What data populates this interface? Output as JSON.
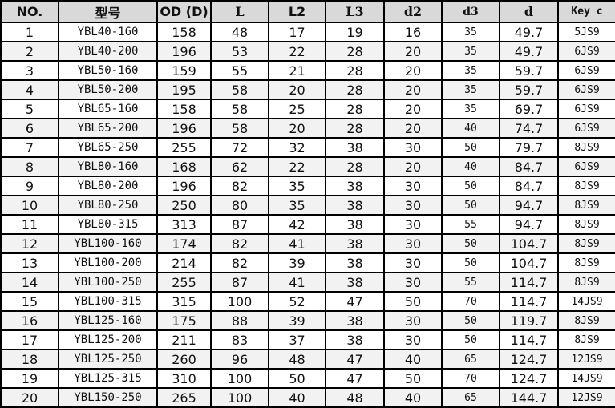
{
  "headers": [
    "NO.",
    "型号",
    "OD (D)",
    "L",
    "L2",
    "L3",
    "d2",
    "d3",
    "d",
    "Key c"
  ],
  "rows": [
    [
      "1",
      "YBL40-160",
      "158",
      "48",
      "17",
      "19",
      "16",
      "35",
      "49.7",
      "5JS9"
    ],
    [
      "2",
      "YBL40-200",
      "196",
      "53",
      "22",
      "28",
      "20",
      "35",
      "49.7",
      "6JS9"
    ],
    [
      "3",
      "YBL50-160",
      "159",
      "55",
      "21",
      "28",
      "20",
      "35",
      "59.7",
      "6JS9"
    ],
    [
      "4",
      "YBL50-200",
      "195",
      "58",
      "20",
      "28",
      "20",
      "35",
      "59.7",
      "6JS9"
    ],
    [
      "5",
      "YBL65-160",
      "158",
      "58",
      "25",
      "28",
      "20",
      "35",
      "69.7",
      "6JS9"
    ],
    [
      "6",
      "YBL65-200",
      "196",
      "58",
      "20",
      "28",
      "20",
      "40",
      "74.7",
      "6JS9"
    ],
    [
      "7",
      "YBL65-250",
      "255",
      "72",
      "32",
      "38",
      "30",
      "50",
      "79.7",
      "8JS9"
    ],
    [
      "8",
      "YBL80-160",
      "168",
      "62",
      "22",
      "28",
      "20",
      "40",
      "84.7",
      "6JS9"
    ],
    [
      "9",
      "YBL80-200",
      "196",
      "82",
      "35",
      "38",
      "30",
      "50",
      "84.7",
      "8JS9"
    ],
    [
      "10",
      "YBL80-250",
      "250",
      "80",
      "35",
      "38",
      "30",
      "50",
      "94.7",
      "8JS9"
    ],
    [
      "11",
      "YBL80-315",
      "313",
      "87",
      "42",
      "38",
      "30",
      "55",
      "94.7",
      "8JS9"
    ],
    [
      "12",
      "YBL100-160",
      "174",
      "82",
      "41",
      "38",
      "30",
      "50",
      "104.7",
      "8JS9"
    ],
    [
      "13",
      "YBL100-200",
      "214",
      "82",
      "39",
      "38",
      "30",
      "50",
      "104.7",
      "8JS9"
    ],
    [
      "14",
      "YBL100-250",
      "255",
      "87",
      "41",
      "38",
      "30",
      "55",
      "114.7",
      "8JS9"
    ],
    [
      "15",
      "YBL100-315",
      "315",
      "100",
      "52",
      "47",
      "50",
      "70",
      "114.7",
      "14JS9"
    ],
    [
      "16",
      "YBL125-160",
      "175",
      "88",
      "39",
      "38",
      "30",
      "50",
      "119.7",
      "8JS9"
    ],
    [
      "17",
      "YBL125-200",
      "211",
      "83",
      "37",
      "38",
      "30",
      "50",
      "114.7",
      "8JS9"
    ],
    [
      "18",
      "YBL125-250",
      "260",
      "96",
      "48",
      "47",
      "40",
      "65",
      "124.7",
      "12JS9"
    ],
    [
      "19",
      "YBL125-315",
      "310",
      "100",
      "50",
      "47",
      "50",
      "70",
      "124.7",
      "14JS9"
    ],
    [
      "20",
      "YBL150-250",
      "265",
      "100",
      "40",
      "48",
      "40",
      "65",
      "144.7",
      "12JS9"
    ]
  ]
}
